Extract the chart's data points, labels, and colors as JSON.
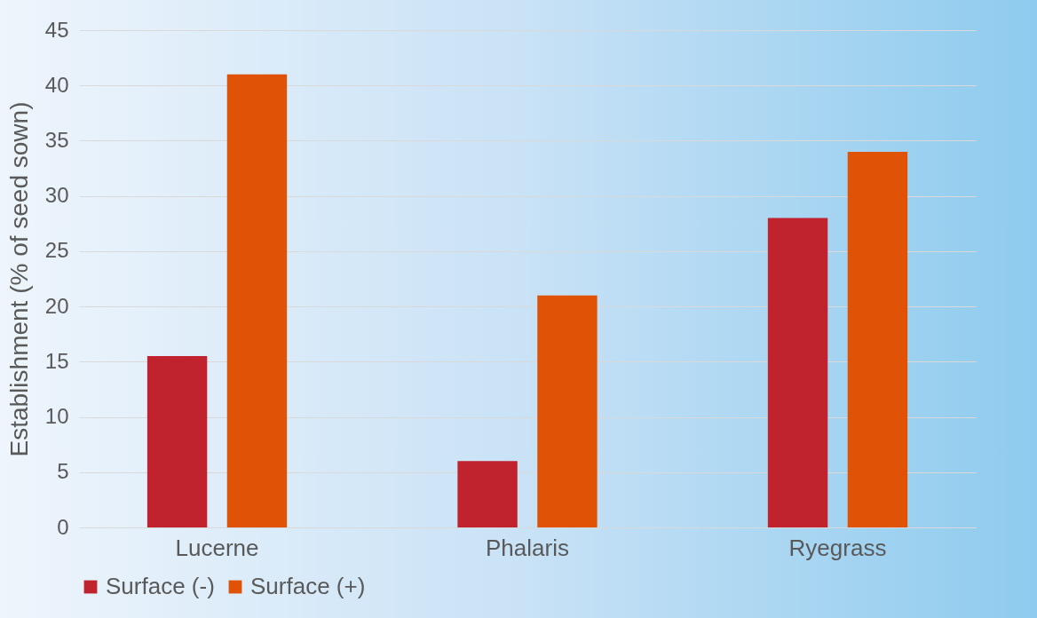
{
  "chart_data": {
    "type": "bar",
    "ylabel": "Establishment (% of seed sown)",
    "categories": [
      "Lucerne",
      "Phalaris",
      "Ryegrass"
    ],
    "series": [
      {
        "name": "Surface (-)",
        "color": "#c0222e",
        "values": [
          15.5,
          6,
          28
        ]
      },
      {
        "name": "Surface (+)",
        "color": "#e05206",
        "values": [
          41,
          21,
          34
        ]
      }
    ],
    "ylim": [
      0,
      45
    ],
    "yticks": [
      0,
      5,
      10,
      15,
      20,
      25,
      30,
      35,
      40,
      45
    ],
    "grid": "y",
    "legend": "bottom"
  }
}
